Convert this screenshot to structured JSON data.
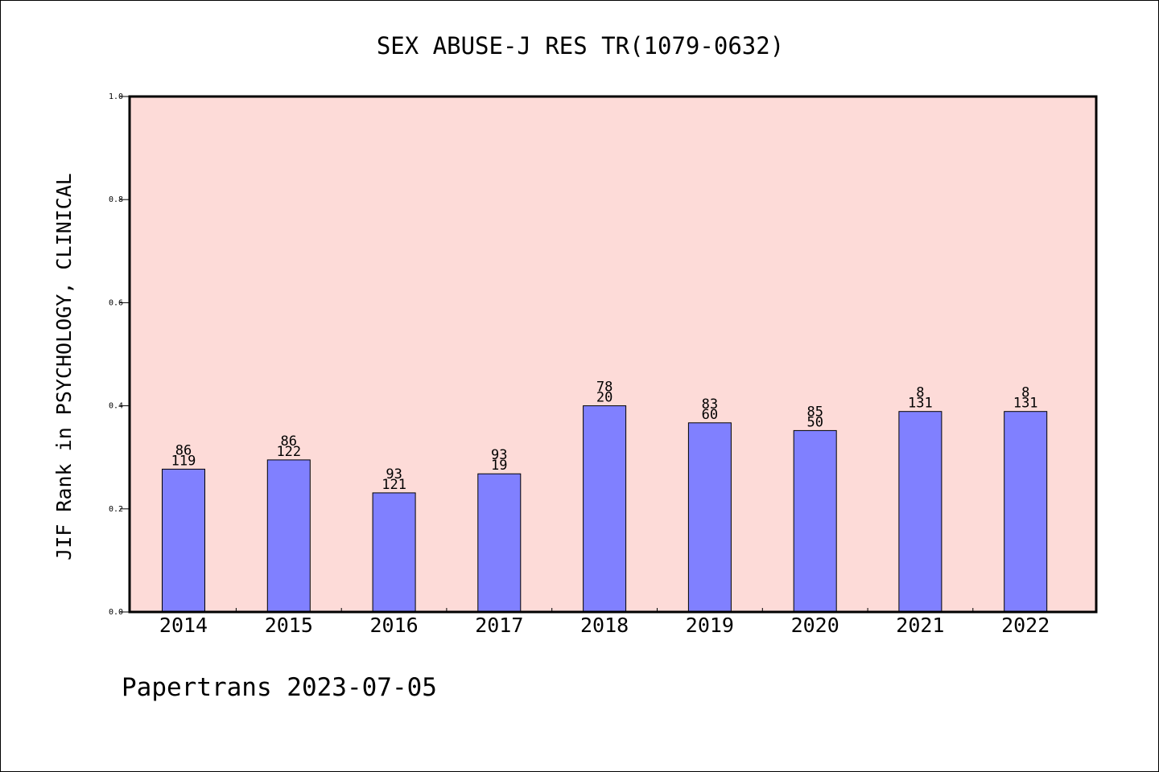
{
  "chart_data": {
    "type": "bar",
    "title": "SEX ABUSE-J RES TR(1079-0632)",
    "ylabel": "JIF Rank in PSYCHOLOGY, CLINICAL",
    "xlabel": "",
    "categories": [
      "2014",
      "2015",
      "2016",
      "2017",
      "2018",
      "2019",
      "2020",
      "2021",
      "2022"
    ],
    "values": [
      0.277,
      0.295,
      0.231,
      0.268,
      0.4,
      0.367,
      0.352,
      0.389,
      0.389
    ],
    "bar_labels_top": [
      "86",
      "86",
      "93",
      "93",
      "78",
      "83",
      "85",
      "8",
      "8"
    ],
    "bar_labels_bottom": [
      "119",
      "122",
      "121",
      "19",
      "20",
      "60",
      "50",
      "131",
      "131"
    ],
    "ylim": [
      0.0,
      1.0
    ],
    "yticks": [
      "0.0",
      "0.2",
      "0.4",
      "0.6",
      "0.8",
      "1.0"
    ],
    "grid": false,
    "colors": {
      "plot_background": "#fddbd8",
      "bar_fill": "#8080ff",
      "bar_stroke": "#000000",
      "axis": "#000000"
    }
  },
  "footer": {
    "credit": "Papertrans 2023-07-05"
  }
}
